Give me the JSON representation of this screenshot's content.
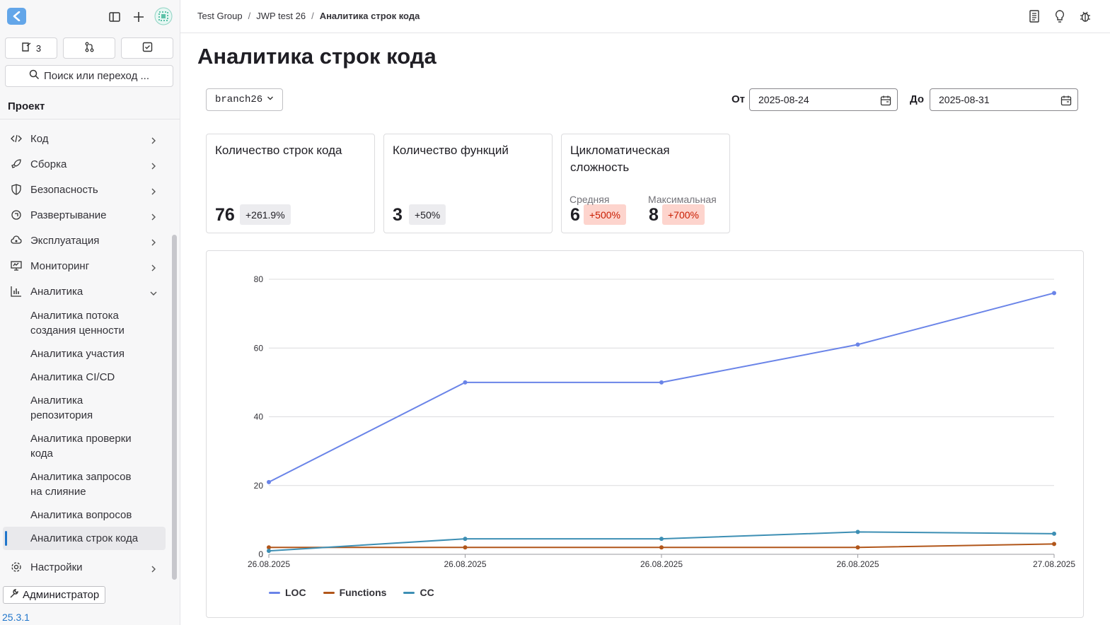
{
  "sidebar": {
    "counts": [
      {
        "icon": "issues-icon",
        "value": "3"
      },
      {
        "icon": "merge-request-icon",
        "value": ""
      },
      {
        "icon": "todo-icon",
        "value": ""
      }
    ],
    "search_placeholder": "Поиск или переход ...",
    "section_label": "Проект",
    "items": [
      {
        "label": "Код",
        "icon": "code-icon"
      },
      {
        "label": "Сборка",
        "icon": "rocket-icon"
      },
      {
        "label": "Безопасность",
        "icon": "shield-icon"
      },
      {
        "label": "Развертывание",
        "icon": "deployments-icon"
      },
      {
        "label": "Эксплуатация",
        "icon": "cloud-gear-icon"
      },
      {
        "label": "Мониторинг",
        "icon": "monitor-icon"
      },
      {
        "label": "Аналитика",
        "icon": "chart-icon"
      }
    ],
    "analytics_subitems": [
      "Аналитика потока создания ценности",
      "Аналитика участия",
      "Аналитика CI/CD",
      "Аналитика репозитория",
      "Аналитика проверки кода",
      "Аналитика запросов на слияние",
      "Аналитика вопросов",
      "Аналитика строк кода"
    ],
    "settings_label": "Настройки",
    "admin_label": "Администратор",
    "version": "25.3.1"
  },
  "breadcrumb": {
    "group": "Test Group",
    "project": "JWP test 26",
    "current": "Аналитика строк кода"
  },
  "page": {
    "title": "Аналитика строк кода",
    "branch": "branch26",
    "from_label": "От",
    "from_date": "2025-08-24",
    "to_label": "До",
    "to_date": "2025-08-31"
  },
  "cards": {
    "loc": {
      "title": "Количество строк кода",
      "value": "76",
      "change": "+261.9%"
    },
    "functions": {
      "title": "Количество функций",
      "value": "3",
      "change": "+50%"
    },
    "cc": {
      "title": "Цикломатическая сложность",
      "avg_label": "Средняя",
      "avg_value": "6",
      "avg_change": "+500%",
      "max_label": "Максимальная",
      "max_value": "8",
      "max_change": "+700%"
    }
  },
  "colors": {
    "loc": "#6a84e8",
    "functions": "#b1561a",
    "cc": "#3d8fb4",
    "badge_red": "#c91c00",
    "accent": "#1f75cb"
  },
  "chart_data": {
    "type": "line",
    "x": [
      "26.08.2025",
      "26.08.2025",
      "26.08.2025",
      "26.08.2025",
      "27.08.2025"
    ],
    "ylim": [
      0,
      80
    ],
    "yticks": [
      0,
      20,
      40,
      60,
      80
    ],
    "grid": true,
    "legend": "bottom-left",
    "series": [
      {
        "name": "LOC",
        "values": [
          21,
          50,
          50,
          61,
          76
        ]
      },
      {
        "name": "Functions",
        "values": [
          2,
          2,
          2,
          2,
          3
        ]
      },
      {
        "name": "CC",
        "values": [
          1,
          4.5,
          4.5,
          6.5,
          6
        ]
      }
    ]
  }
}
